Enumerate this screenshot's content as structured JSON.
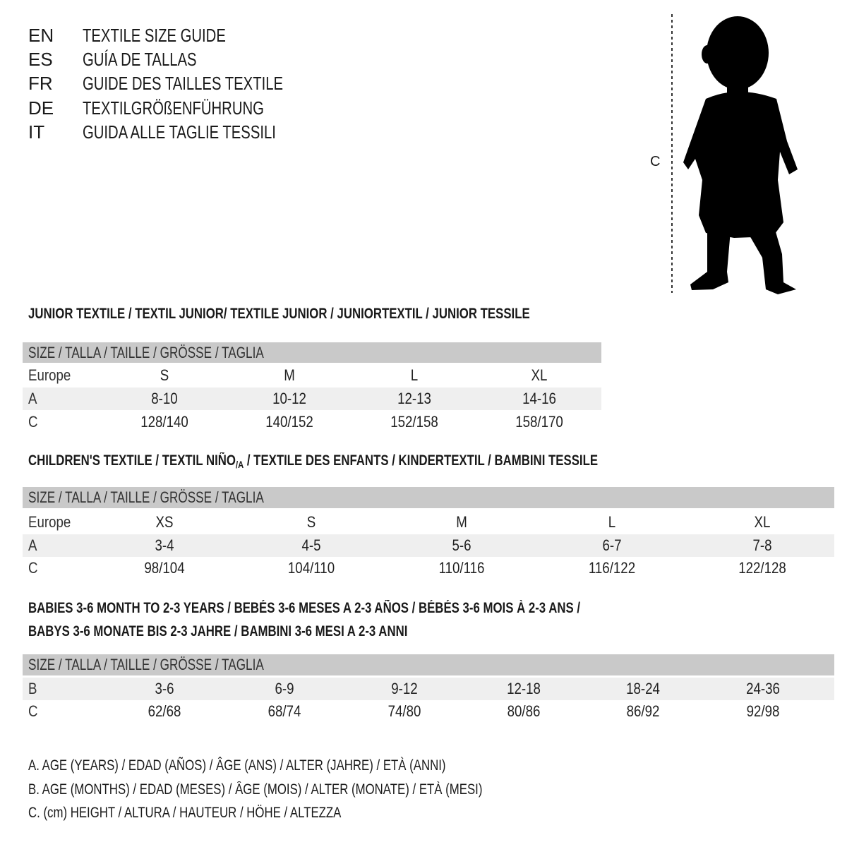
{
  "titles": [
    {
      "code": "EN",
      "text": "TEXTILE SIZE GUIDE"
    },
    {
      "code": "ES",
      "text": "GUÍA DE TALLAS"
    },
    {
      "code": "FR",
      "text": "GUIDE DES TAILLES TEXTILE"
    },
    {
      "code": "DE",
      "text": "TEXTILGRÖßENFÜHRUNG"
    },
    {
      "code": "IT",
      "text": "GUIDA ALLE TAGLIE TESSILI"
    }
  ],
  "figure": {
    "measure_label": "C",
    "icon": "child-silhouette"
  },
  "size_header": "SIZE / TALLA / TAILLE / GRÖSSE / TAGLIA",
  "junior": {
    "title": "JUNIOR TEXTILE / TEXTIL JUNIOR/ TEXTILE JUNIOR / JUNIORTEXTIL / JUNIOR TESSILE",
    "rows": [
      {
        "label": "Europe",
        "values": [
          "S",
          "M",
          "L",
          "XL"
        ]
      },
      {
        "label": "A",
        "values": [
          "8-10",
          "10-12",
          "12-13",
          "14-16"
        ]
      },
      {
        "label": "C",
        "values": [
          "128/140",
          "140/152",
          "152/158",
          "158/170"
        ]
      }
    ]
  },
  "children": {
    "title_a": "CHILDREN'S TEXTILE / TEXTIL NIÑO",
    "title_sub": "/A",
    "title_b": " / TEXTILE DES ENFANTS / KINDERTEXTIL / BAMBINI TESSILE",
    "rows": [
      {
        "label": "Europe",
        "values": [
          "XS",
          "S",
          "M",
          "L",
          "XL"
        ]
      },
      {
        "label": "A",
        "values": [
          "3-4",
          "4-5",
          "5-6",
          "6-7",
          "7-8"
        ]
      },
      {
        "label": "C",
        "values": [
          "98/104",
          "104/110",
          "110/116",
          "116/122",
          "122/128"
        ]
      }
    ]
  },
  "babies": {
    "title_line1": "BABIES 3-6 MONTH TO 2-3 YEARS / BEBÉS 3-6 MESES A 2-3 AÑOS / BÉBÉS 3-6 MOIS À 2-3 ANS /",
    "title_line2": "BABYS 3-6 MONATE BIS 2-3 JAHRE / BAMBINI 3-6 MESI A 2-3 ANNI",
    "rows": [
      {
        "label": "B",
        "values": [
          "3-6",
          "6-9",
          "9-12",
          "12-18",
          "18-24",
          "24-36"
        ]
      },
      {
        "label": "C",
        "values": [
          "62/68",
          "68/74",
          "74/80",
          "80/86",
          "86/92",
          "92/98"
        ]
      }
    ]
  },
  "legend": [
    "A. AGE (YEARS) / EDAD (AÑOS) / ÂGE (ANS) / ALTER (JAHRE) / ETÀ (ANNI)",
    "B. AGE (MONTHS) / EDAD (MESES) / ÂGE (MOIS) / ALTER (MONATE) / ETÀ (MESI)",
    "C. (cm) HEIGHT / ALTURA / HAUTEUR / HÖHE / ALTEZZA"
  ],
  "colors": {
    "header_bar": "#c9c9c9",
    "row_shade": "#efefef"
  }
}
